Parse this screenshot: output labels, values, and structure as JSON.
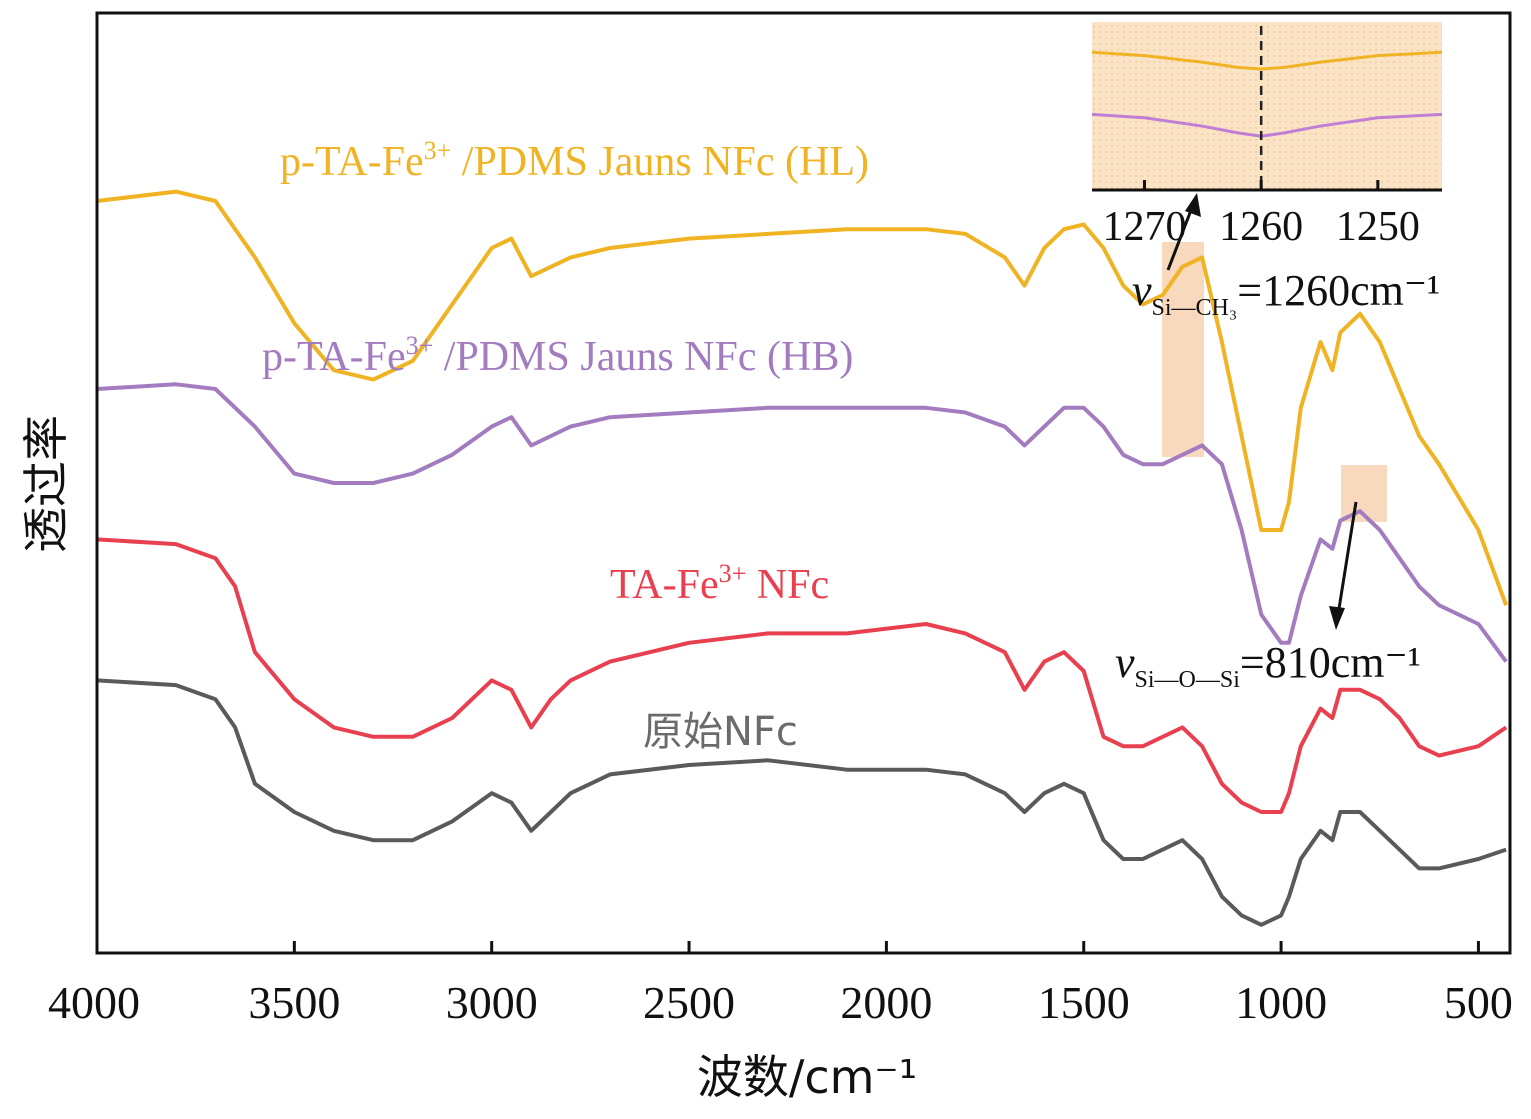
{
  "chart_data": {
    "type": "line",
    "xlabel": "波数/cm⁻¹",
    "ylabel": "透过率",
    "xlim": [
      4000,
      420
    ],
    "ylim": [
      0,
      100
    ],
    "x_ticks": [
      "4000",
      "3500",
      "3000",
      "2500",
      "2000",
      "1500",
      "1000",
      "500"
    ],
    "y_ticks": [],
    "series": [
      {
        "name": "p-TA-Fe³⁺/PDMS Jauns NFc (HL)",
        "label_main": "p-TA-Fe",
        "label_sup": "3+",
        "label_rest": " /PDMS Jauns NFc (HL)",
        "color": "#f0b324",
        "x": [
          4000,
          3800,
          3700,
          3600,
          3500,
          3400,
          3300,
          3200,
          3100,
          3000,
          2950,
          2900,
          2850,
          2800,
          2700,
          2500,
          2300,
          2100,
          1900,
          1800,
          1700,
          1650,
          1600,
          1550,
          1500,
          1450,
          1400,
          1350,
          1300,
          1250,
          1200,
          1150,
          1100,
          1050,
          1000,
          980,
          950,
          900,
          870,
          850,
          800,
          750,
          700,
          650,
          600,
          500,
          430
        ],
        "y": [
          80,
          81,
          80,
          74,
          67,
          62,
          61,
          63,
          69,
          75,
          76,
          72,
          73,
          74,
          75,
          76,
          76.5,
          77,
          77,
          76.5,
          74,
          71,
          75,
          77,
          77.5,
          75,
          71,
          69,
          70,
          73,
          74,
          65,
          55,
          45,
          45,
          48,
          58,
          65,
          62,
          66,
          68,
          65,
          60,
          55,
          52,
          45,
          37
        ]
      },
      {
        "name": "p-TA-Fe³⁺/PDMS Jauns NFc (HB)",
        "label_main": "p-TA-Fe",
        "label_sup": "3+",
        "label_rest": " /PDMS Jauns NFc (HB)",
        "color": "#a37cc0",
        "x": [
          4000,
          3800,
          3700,
          3600,
          3500,
          3400,
          3300,
          3200,
          3100,
          3000,
          2950,
          2900,
          2850,
          2800,
          2700,
          2500,
          2300,
          2100,
          1900,
          1800,
          1700,
          1650,
          1600,
          1550,
          1500,
          1450,
          1400,
          1350,
          1300,
          1250,
          1200,
          1150,
          1100,
          1050,
          1000,
          980,
          950,
          900,
          870,
          850,
          800,
          750,
          700,
          650,
          600,
          500,
          430
        ],
        "y": [
          60,
          60.5,
          60,
          56,
          51,
          50,
          50,
          51,
          53,
          56,
          57,
          54,
          55,
          56,
          57,
          57.5,
          58,
          58,
          58,
          57.5,
          56,
          54,
          56,
          58,
          58,
          56,
          53,
          52,
          52,
          53,
          54,
          52,
          45,
          36,
          33,
          33,
          38,
          44,
          43,
          46,
          47,
          45,
          42,
          39,
          37,
          35,
          31
        ]
      },
      {
        "name": "TA-Fe³⁺ NFc",
        "label_main": "TA-Fe",
        "label_sup": "3+",
        "label_rest": " NFc",
        "color": "#e8404f",
        "x": [
          4000,
          3800,
          3700,
          3650,
          3600,
          3500,
          3400,
          3300,
          3200,
          3100,
          3000,
          2950,
          2900,
          2850,
          2800,
          2700,
          2500,
          2300,
          2100,
          1900,
          1800,
          1700,
          1650,
          1600,
          1550,
          1500,
          1450,
          1400,
          1350,
          1300,
          1250,
          1200,
          1150,
          1100,
          1050,
          1000,
          980,
          950,
          900,
          870,
          850,
          800,
          750,
          700,
          650,
          600,
          500,
          430
        ],
        "y": [
          44,
          43.5,
          42,
          39,
          32,
          27,
          24,
          23,
          23,
          25,
          29,
          28,
          24,
          27,
          29,
          31,
          33,
          34,
          34,
          35,
          34,
          32,
          28,
          31,
          32,
          30,
          23,
          22,
          22,
          23,
          24,
          22,
          18,
          16,
          15,
          15,
          17,
          22,
          26,
          25,
          28,
          28,
          27,
          25,
          22,
          21,
          22,
          24
        ]
      },
      {
        "name": "原始NFc",
        "label_main": "原始NFc",
        "label_sup": "",
        "label_rest": "",
        "color": "#5a5a5a",
        "x": [
          4000,
          3800,
          3700,
          3650,
          3600,
          3500,
          3400,
          3300,
          3200,
          3100,
          3000,
          2950,
          2900,
          2850,
          2800,
          2700,
          2500,
          2300,
          2100,
          1900,
          1800,
          1700,
          1650,
          1600,
          1550,
          1500,
          1450,
          1400,
          1350,
          1300,
          1250,
          1200,
          1150,
          1100,
          1050,
          1000,
          980,
          950,
          900,
          870,
          850,
          800,
          750,
          700,
          650,
          600,
          500,
          430
        ],
        "y": [
          29,
          28.5,
          27,
          24,
          18,
          15,
          13,
          12,
          12,
          14,
          17,
          16,
          13,
          15,
          17,
          19,
          20,
          20.5,
          19.5,
          19.5,
          19,
          17,
          15,
          17,
          18,
          17,
          12,
          10,
          10,
          11,
          12,
          10,
          6,
          4,
          3,
          4,
          6,
          10,
          13,
          12,
          15,
          15,
          13,
          11,
          9,
          9,
          10,
          11
        ]
      }
    ],
    "annotations": {
      "si_ch3": {
        "main": "v",
        "sub": "Si—CH₃",
        "rest": "=1260cm⁻¹"
      },
      "si_o_si": {
        "main": "v",
        "sub": "Si—O—Si",
        "rest": "=810cm⁻¹"
      }
    },
    "inset": {
      "x_ticks": [
        "1270",
        "1260",
        "1250"
      ],
      "xlim": [
        1274.5,
        1244.5
      ],
      "marker_x": 1260,
      "series": [
        {
          "color": "#f0b324",
          "x": [
            1274.5,
            1270,
            1265,
            1262,
            1260,
            1258,
            1255,
            1250,
            1244.5
          ],
          "y": [
            82,
            80,
            76,
            73,
            72,
            73,
            76,
            80,
            82
          ]
        },
        {
          "color": "#c07fd4",
          "x": [
            1274.5,
            1270,
            1265,
            1262,
            1260,
            1258,
            1255,
            1250,
            1244.5
          ],
          "y": [
            45,
            43,
            38,
            34,
            32,
            34,
            38,
            43,
            45
          ]
        }
      ]
    }
  }
}
